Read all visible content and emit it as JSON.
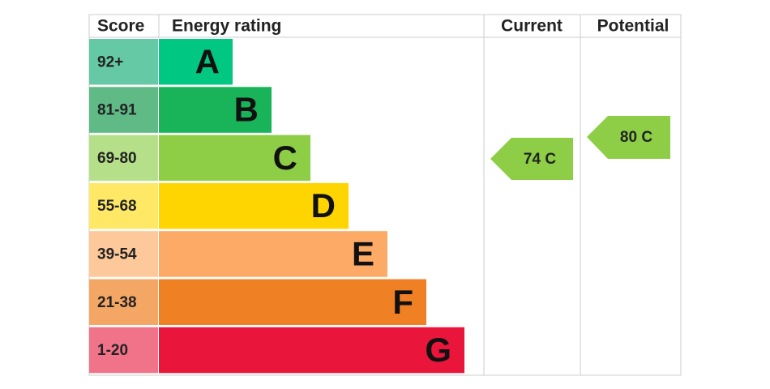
{
  "header": {
    "score": "Score",
    "rating": "Energy rating",
    "current": "Current",
    "potential": "Potential"
  },
  "bands": [
    {
      "score": "92+",
      "letter": "A"
    },
    {
      "score": "81-91",
      "letter": "B"
    },
    {
      "score": "69-80",
      "letter": "C"
    },
    {
      "score": "55-68",
      "letter": "D"
    },
    {
      "score": "39-54",
      "letter": "E"
    },
    {
      "score": "21-38",
      "letter": "F"
    },
    {
      "score": "1-20",
      "letter": "G"
    }
  ],
  "current": "74 C",
  "potential": "80 C"
}
